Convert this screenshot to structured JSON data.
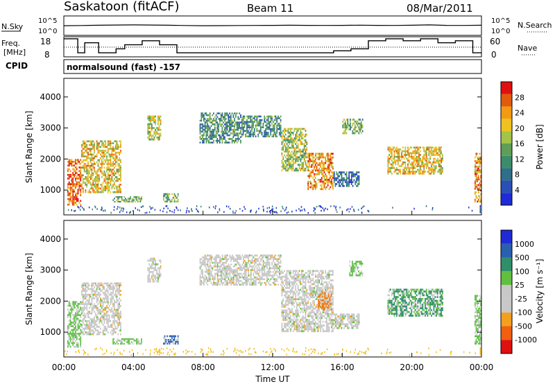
{
  "header": {
    "station": "Saskatoon (fitACF)",
    "beam": "Beam 11",
    "date": "08/Mar/2011"
  },
  "sky_panel": {
    "left_label": "N.Sky",
    "right_label": "N.Search",
    "top_tick": "10^5",
    "bottom_tick": "10^0",
    "right_top_tick": "10^5",
    "right_bottom_tick": "10^0"
  },
  "freq_panel": {
    "left_label_1": "Freq.",
    "left_label_2": "[MHz]",
    "left_ticks": [
      "18",
      "8"
    ],
    "right_label": "Nave",
    "right_ticks": [
      "60",
      "0"
    ]
  },
  "cpid": {
    "label": "CPID",
    "text": "normalsound (fast) -157"
  },
  "colors": {
    "power": [
      "#1f2bd6",
      "#2a50b5",
      "#2f6f8a",
      "#3c8b6a",
      "#5f9e56",
      "#a2c44a",
      "#f0c21f",
      "#f39a13",
      "#e25a0d",
      "#e01010"
    ],
    "velocity": [
      "#e01010",
      "#f06010",
      "#f3a020",
      "#c8c8c8",
      "#c8c8c8",
      "#62c040",
      "#2f8f6a",
      "#2a5fb0",
      "#1f2bd6"
    ]
  },
  "chart_data": [
    {
      "type": "line",
      "title": "N.Sky / N.Search",
      "x": [
        0,
        1,
        2,
        3,
        4,
        5,
        6,
        7,
        8,
        9,
        10,
        11,
        12,
        13,
        14,
        15,
        16,
        17,
        18,
        19,
        20,
        21,
        22,
        23,
        24
      ],
      "series": [
        {
          "name": "N.Sky",
          "values": [
            300,
            350,
            400,
            450,
            500,
            450,
            400,
            350,
            300,
            320,
            340,
            360,
            380,
            400,
            380,
            360,
            380,
            420,
            380,
            360,
            400,
            500,
            380,
            360,
            400
          ]
        },
        {
          "name": "N.Search",
          "values": [
            80,
            80,
            80,
            80,
            80,
            80,
            80,
            80,
            80,
            80,
            80,
            80,
            80,
            80,
            80,
            80,
            80,
            80,
            80,
            80,
            80,
            80,
            80,
            80,
            80
          ]
        }
      ],
      "ylim": [
        1,
        100000
      ],
      "yscale": "log"
    },
    {
      "type": "line",
      "title": "Freq. / Nave",
      "x": [
        0,
        0.8,
        1.2,
        2.0,
        3.0,
        3.5,
        4.5,
        5.5,
        6.5,
        7.5,
        8.5,
        9.5,
        10.5,
        11.5,
        12.5,
        13.5,
        14.5,
        15.5,
        16.5,
        17.5,
        18.5,
        19.5,
        20.5,
        21.5,
        22.5,
        23.5,
        24
      ],
      "series": [
        {
          "name": "Freq",
          "values": [
            17,
            10,
            15,
            10,
            12,
            14,
            16,
            14,
            10,
            10,
            10,
            10,
            10,
            10,
            10,
            10,
            10,
            11,
            12,
            16,
            17,
            16,
            17,
            15,
            16,
            10,
            17
          ]
        }
      ],
      "ylim": [
        8,
        18
      ]
    },
    {
      "type": "heatmap",
      "name": "Power",
      "xlabel": "Time UT",
      "ylabel": "Slant Range [km]",
      "x_ticks": [
        "00:00",
        "04:00",
        "08:00",
        "12:00",
        "16:00",
        "20:00",
        "00:00"
      ],
      "y_ticks": [
        "1000",
        "2000",
        "3000",
        "4000"
      ],
      "ylim": [
        200,
        4600
      ],
      "xlim": [
        0,
        24
      ],
      "colorbar_label": "Power [dB]",
      "colorbar_ticks": [
        "4",
        "8",
        "12",
        "16",
        "20",
        "24",
        "28"
      ],
      "echo_regions": [
        {
          "t0": 0.2,
          "t1": 1.0,
          "r0": 500,
          "r1": 2000,
          "level": 8
        },
        {
          "t0": 1.0,
          "t1": 3.3,
          "r0": 900,
          "r1": 2600,
          "level": 6
        },
        {
          "t0": 2.8,
          "t1": 4.5,
          "r0": 600,
          "r1": 800,
          "level": 4
        },
        {
          "t0": 4.8,
          "t1": 5.6,
          "r0": 2600,
          "r1": 3400,
          "level": 5
        },
        {
          "t0": 5.7,
          "t1": 6.6,
          "r0": 600,
          "r1": 900,
          "level": 4
        },
        {
          "t0": 7.8,
          "t1": 10.2,
          "r0": 2500,
          "r1": 3500,
          "level": 3
        },
        {
          "t0": 10.2,
          "t1": 12.5,
          "r0": 2700,
          "r1": 3400,
          "level": 3
        },
        {
          "t0": 12.5,
          "t1": 14.0,
          "r0": 1600,
          "r1": 3000,
          "level": 5
        },
        {
          "t0": 14.0,
          "t1": 15.5,
          "r0": 1000,
          "r1": 2200,
          "level": 7
        },
        {
          "t0": 15.5,
          "t1": 17.0,
          "r0": 1100,
          "r1": 1600,
          "level": 2
        },
        {
          "t0": 16.0,
          "t1": 17.2,
          "r0": 2800,
          "r1": 3300,
          "level": 4
        },
        {
          "t0": 18.6,
          "t1": 21.8,
          "r0": 1500,
          "r1": 2400,
          "level": 6
        },
        {
          "t0": 23.6,
          "t1": 24.0,
          "r0": 600,
          "r1": 2200,
          "level": 7
        }
      ]
    },
    {
      "type": "heatmap",
      "name": "Velocity",
      "xlabel": "Time UT",
      "ylabel": "Slant Range [km]",
      "x_ticks": [
        "00:00",
        "04:00",
        "08:00",
        "12:00",
        "16:00",
        "20:00",
        "00:00"
      ],
      "y_ticks": [
        "1000",
        "2000",
        "3000",
        "4000"
      ],
      "ylim": [
        200,
        4600
      ],
      "xlim": [
        0,
        24
      ],
      "colorbar_label": "Velocity [m s⁻¹]",
      "colorbar_ticks": [
        "1000",
        "500",
        "100",
        "25",
        "-25",
        "-100",
        "-500",
        "-1000"
      ],
      "echo_regions": [
        {
          "t0": 0.2,
          "t1": 1.0,
          "r0": 500,
          "r1": 2000,
          "vel": "green"
        },
        {
          "t0": 1.0,
          "t1": 3.3,
          "r0": 900,
          "r1": 2600,
          "vel": "grey"
        },
        {
          "t0": 2.8,
          "t1": 4.5,
          "r0": 600,
          "r1": 800,
          "vel": "green"
        },
        {
          "t0": 4.8,
          "t1": 5.6,
          "r0": 2600,
          "r1": 3400,
          "vel": "grey"
        },
        {
          "t0": 5.7,
          "t1": 6.6,
          "r0": 600,
          "r1": 900,
          "vel": "blue"
        },
        {
          "t0": 7.8,
          "t1": 12.5,
          "r0": 2500,
          "r1": 3500,
          "vel": "grey"
        },
        {
          "t0": 12.5,
          "t1": 15.5,
          "r0": 1000,
          "r1": 3000,
          "vel": "grey"
        },
        {
          "t0": 14.6,
          "t1": 15.4,
          "r0": 1700,
          "r1": 2300,
          "vel": "orange"
        },
        {
          "t0": 15.5,
          "t1": 17.0,
          "r0": 1100,
          "r1": 1600,
          "vel": "grey"
        },
        {
          "t0": 16.4,
          "t1": 17.2,
          "r0": 2800,
          "r1": 3300,
          "vel": "green"
        },
        {
          "t0": 18.6,
          "t1": 21.8,
          "r0": 1500,
          "r1": 2400,
          "vel": "teal"
        },
        {
          "t0": 23.6,
          "t1": 24.0,
          "r0": 600,
          "r1": 2200,
          "vel": "green"
        }
      ]
    }
  ]
}
